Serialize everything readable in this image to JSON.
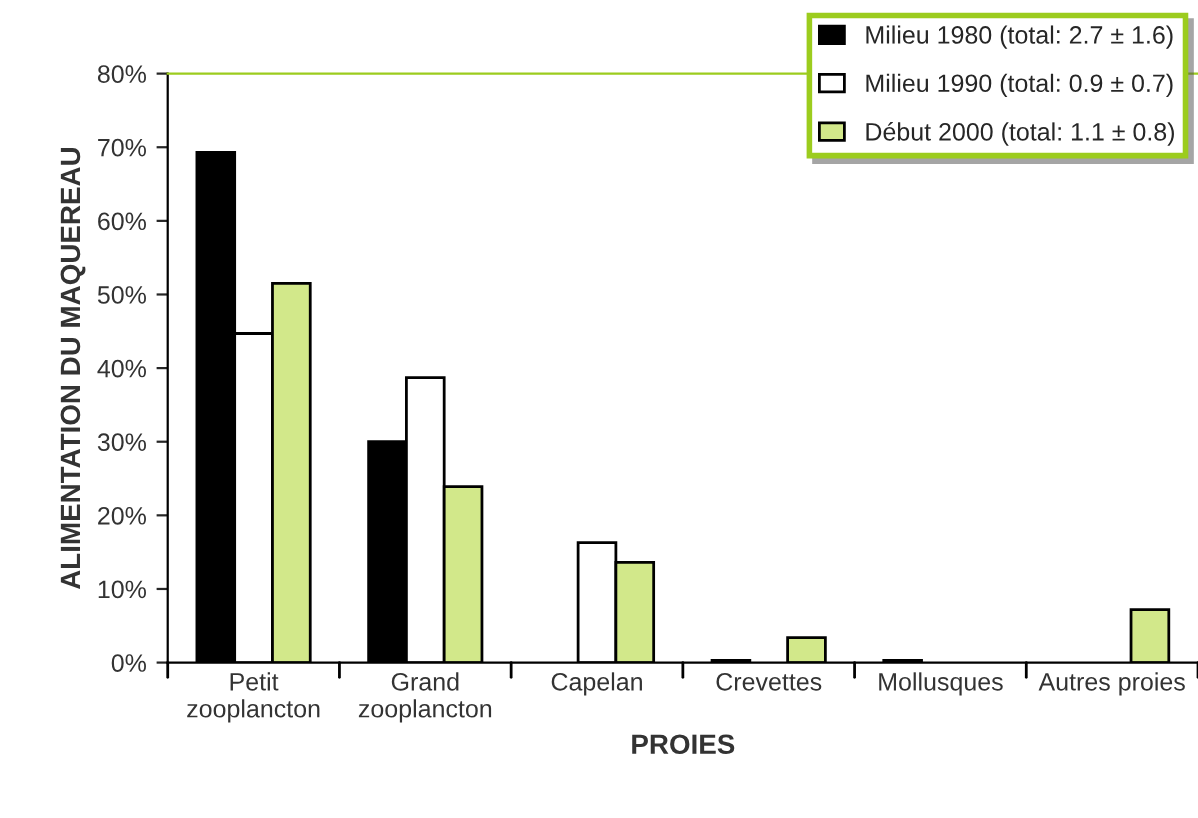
{
  "chart_data": {
    "type": "bar",
    "xlabel": "PROIES",
    "ylabel": "ALIMENTATION DU MAQUEREAU",
    "categories": [
      "Petit\nzooplancton",
      "Grand\nzooplancton",
      "Capelan",
      "Crevettes",
      "Mollusques",
      "Autres proies"
    ],
    "series": [
      {
        "name": "Milieu 1980 (total: 2.7 ± 1.6)",
        "color": "#000000",
        "values": [
          69.3,
          30,
          0,
          0.3,
          0.3,
          0
        ]
      },
      {
        "name": "Milieu 1990 (total: 0.9 ± 0.7)",
        "color": "#ffffff",
        "values": [
          44.7,
          38.7,
          16.3,
          0,
          0,
          0
        ]
      },
      {
        "name": "Début 2000 (total: 1.1 ± 0.8)",
        "color": "#d2e88a",
        "values": [
          51.5,
          23.9,
          13.6,
          3.4,
          0,
          7.2
        ]
      }
    ],
    "ylim": [
      0,
      80
    ],
    "yticks": [
      {
        "value": 0,
        "label": "0%"
      },
      {
        "value": 10,
        "label": "10%"
      },
      {
        "value": 20,
        "label": "20%"
      },
      {
        "value": 30,
        "label": "30%"
      },
      {
        "value": 40,
        "label": "40%"
      },
      {
        "value": 50,
        "label": "50%"
      },
      {
        "value": 60,
        "label": "60%"
      },
      {
        "value": 70,
        "label": "70%"
      },
      {
        "value": 80,
        "label": "80%"
      }
    ],
    "grid": false,
    "legend": "top right"
  }
}
